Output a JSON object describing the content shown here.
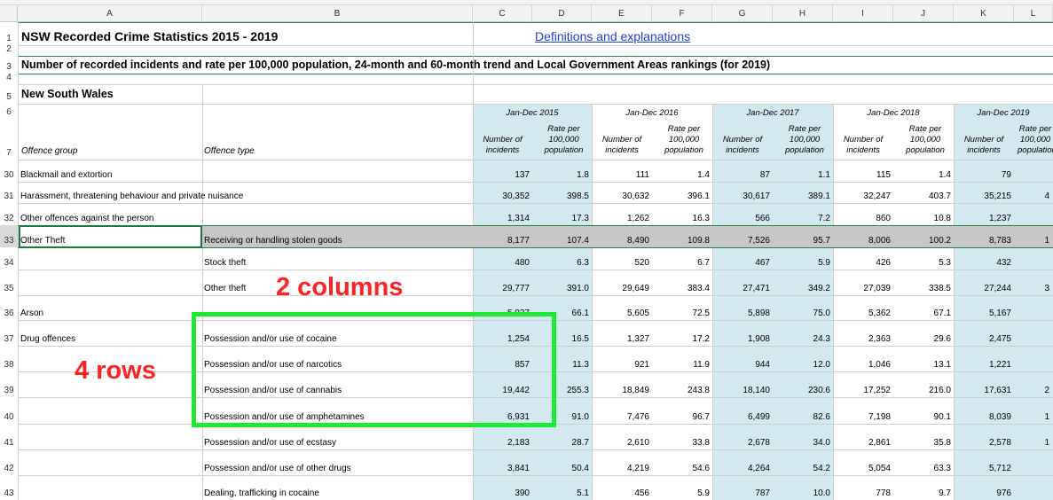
{
  "columns": [
    "A",
    "B",
    "C",
    "D",
    "E",
    "F",
    "G",
    "H",
    "I",
    "J",
    "K",
    "L"
  ],
  "sheet": {
    "title": "NSW Recorded Crime Statistics 2015 - 2019",
    "link": "Definitions and explanations",
    "subtitle": "Number of recorded incidents and rate per 100,000 population, 24-month and 60-month trend and Local Government Areas rankings (for 2019)",
    "region": "New South Wales",
    "header": {
      "offence_group": "Offence group",
      "offence_type": "Offence type",
      "periods": [
        "Jan-Dec 2015",
        "Jan-Dec 2016",
        "Jan-Dec 2017",
        "Jan-Dec 2018",
        "Jan-Dec 2019"
      ],
      "num_label": "Number of incidents",
      "rate_label": "Rate per 100,000 population"
    },
    "top_rows": [
      "1",
      "2",
      "3",
      "4",
      "5",
      "6",
      "7"
    ],
    "rows": [
      {
        "rownum": "30",
        "group": "Blackmail and extortion",
        "type": "",
        "values": [
          "137",
          "1.8",
          "111",
          "1.4",
          "87",
          "1.1",
          "115",
          "1.4",
          "79",
          ""
        ]
      },
      {
        "rownum": "31",
        "group": "Harassment, threatening behaviour and private nuisance",
        "type": "",
        "values": [
          "30,352",
          "398.5",
          "30,632",
          "396.1",
          "30,617",
          "389.1",
          "32,247",
          "403.7",
          "35,215",
          "4"
        ]
      },
      {
        "rownum": "32",
        "group": "Other offences against the person",
        "type": "",
        "values": [
          "1,314",
          "17.3",
          "1,262",
          "16.3",
          "566",
          "7.2",
          "860",
          "10.8",
          "1,237",
          ""
        ]
      },
      {
        "rownum": "33",
        "group": "Other Theft",
        "type": "Receiving or handling stolen goods",
        "values": [
          "8,177",
          "107.4",
          "8,490",
          "109.8",
          "7,526",
          "95.7",
          "8,006",
          "100.2",
          "8,783",
          "1"
        ]
      },
      {
        "rownum": "34",
        "group": "",
        "type": "Stock theft",
        "values": [
          "480",
          "6.3",
          "520",
          "6.7",
          "467",
          "5.9",
          "426",
          "5.3",
          "432",
          ""
        ]
      },
      {
        "rownum": "35",
        "group": "",
        "type": "Other theft",
        "values": [
          "29,777",
          "391.0",
          "29,649",
          "383.4",
          "27,471",
          "349.2",
          "27,039",
          "338.5",
          "27,244",
          "3"
        ]
      },
      {
        "rownum": "36",
        "group": "Arson",
        "type": "",
        "values": [
          "5,037",
          "66.1",
          "5,605",
          "72.5",
          "5,898",
          "75.0",
          "5,362",
          "67.1",
          "5,167",
          ""
        ]
      },
      {
        "rownum": "37",
        "group": "Drug offences",
        "type": "Possession and/or use of cocaine",
        "values": [
          "1,254",
          "16.5",
          "1,327",
          "17.2",
          "1,908",
          "24.3",
          "2,363",
          "29.6",
          "2,475",
          ""
        ]
      },
      {
        "rownum": "38",
        "group": "",
        "type": "Possession and/or use of narcotics",
        "values": [
          "857",
          "11.3",
          "921",
          "11.9",
          "944",
          "12.0",
          "1,046",
          "13.1",
          "1,221",
          ""
        ]
      },
      {
        "rownum": "39",
        "group": "",
        "type": "Possession and/or use of cannabis",
        "values": [
          "19,442",
          "255.3",
          "18,849",
          "243.8",
          "18,140",
          "230.6",
          "17,252",
          "216.0",
          "17,631",
          "2"
        ]
      },
      {
        "rownum": "40",
        "group": "",
        "type": "Possession and/or use of amphetamines",
        "values": [
          "6,931",
          "91.0",
          "7,476",
          "96.7",
          "6,499",
          "82.6",
          "7,198",
          "90.1",
          "8,039",
          "1"
        ]
      },
      {
        "rownum": "41",
        "group": "",
        "type": "Possession and/or use of ecstasy",
        "values": [
          "2,183",
          "28.7",
          "2,610",
          "33.8",
          "2,678",
          "34.0",
          "2,861",
          "35.8",
          "2,578",
          "1"
        ]
      },
      {
        "rownum": "42",
        "group": "",
        "type": "Possession and/or use of other drugs",
        "values": [
          "3,841",
          "50.4",
          "4,219",
          "54.6",
          "4,264",
          "54.2",
          "5,054",
          "63.3",
          "5,712",
          ""
        ]
      },
      {
        "rownum": "43",
        "group": "",
        "type": "Dealing, trafficking in cocaine",
        "values": [
          "390",
          "5.1",
          "456",
          "5.9",
          "787",
          "10.0",
          "778",
          "9.7",
          "976",
          ""
        ]
      }
    ]
  },
  "annotations": {
    "columns_note": "2 columns",
    "rows_note": "4 rows"
  },
  "colors": {
    "band": "#d3e9f0",
    "annotation_text": "#ff2222",
    "annotation_box": "#1ee832",
    "link": "#1f3fd1"
  }
}
